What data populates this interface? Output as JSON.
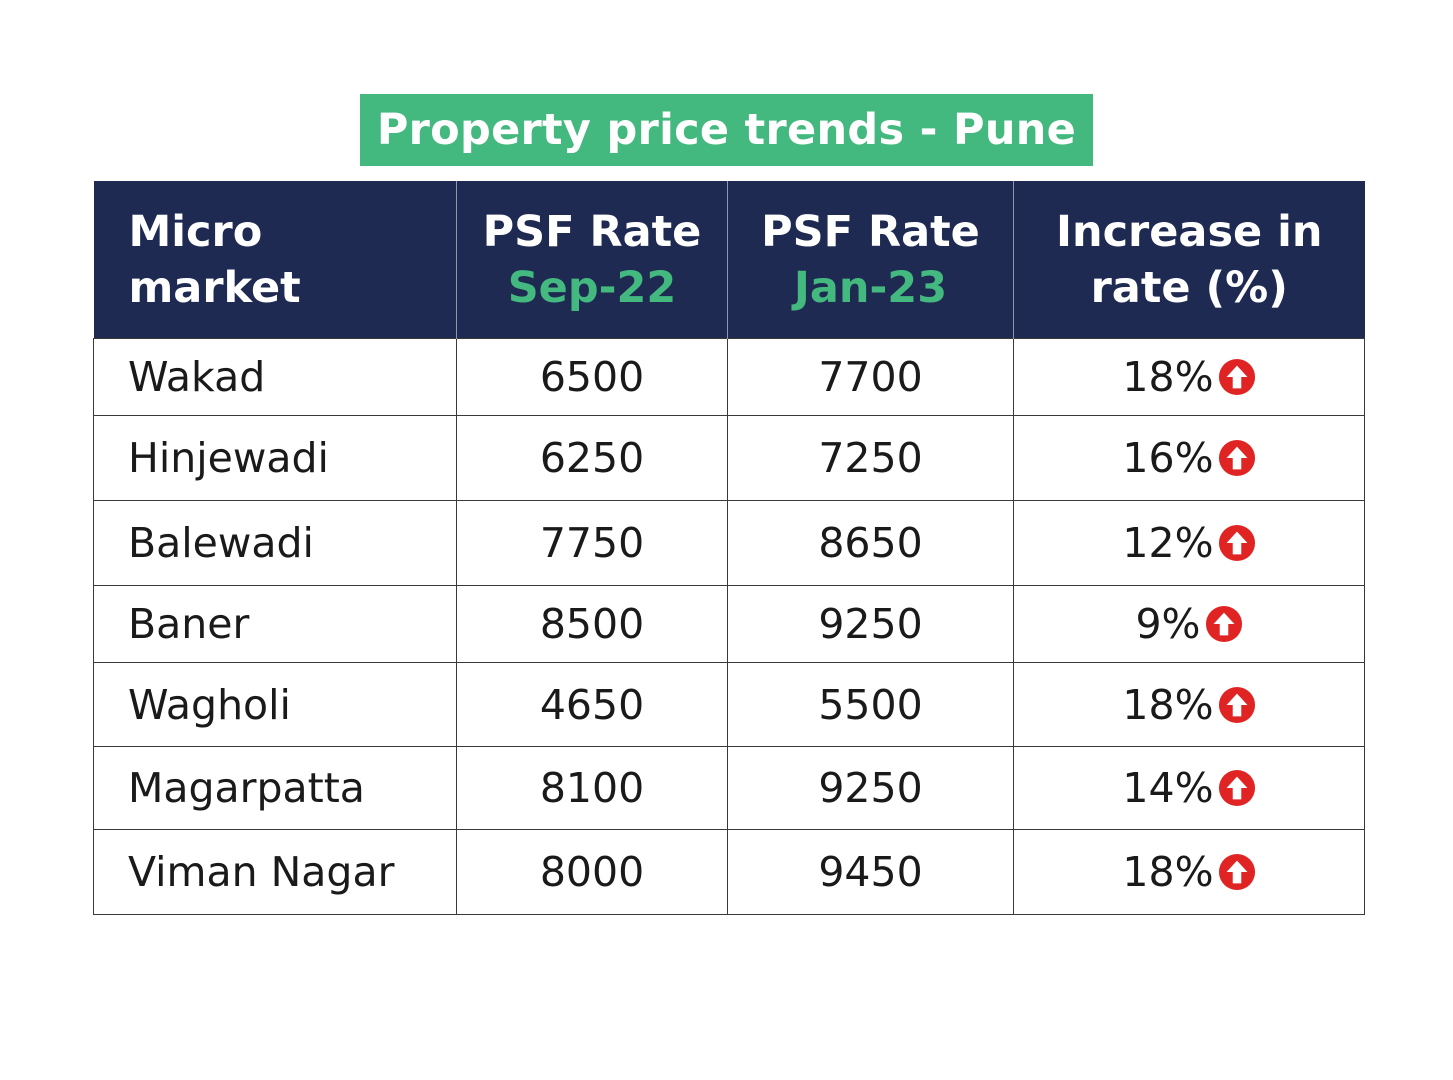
{
  "title": "Property price trends - Pune",
  "table": {
    "headers": {
      "market": [
        "Micro",
        "market"
      ],
      "sep_rate": {
        "label": "PSF Rate",
        "period": "Sep-22"
      },
      "jan_rate": {
        "label": "PSF Rate",
        "period": "Jan-23"
      },
      "increase": [
        "Increase in",
        "rate (%)"
      ]
    },
    "rows": [
      {
        "market": "Wakad",
        "sep": "6500",
        "jan": "7700",
        "increase": "18%"
      },
      {
        "market": "Hinjewadi",
        "sep": "6250",
        "jan": "7250",
        "increase": "16%"
      },
      {
        "market": "Balewadi",
        "sep": "7750",
        "jan": "8650",
        "increase": "12%"
      },
      {
        "market": "Baner",
        "sep": "8500",
        "jan": "9250",
        "increase": "9%"
      },
      {
        "market": "Wagholi",
        "sep": "4650",
        "jan": "5500",
        "increase": "18%"
      },
      {
        "market": "Magarpatta",
        "sep": "8100",
        "jan": "9250",
        "increase": "14%"
      },
      {
        "market": "Viman Nagar",
        "sep": "8000",
        "jan": "9450",
        "increase": "18%"
      }
    ],
    "increase_icon": "arrow-up-circle-icon"
  },
  "colors": {
    "banner": "#43b97f",
    "header_bg": "#1e2a52",
    "period_text": "#43b97f",
    "up_icon": "#e02424"
  }
}
